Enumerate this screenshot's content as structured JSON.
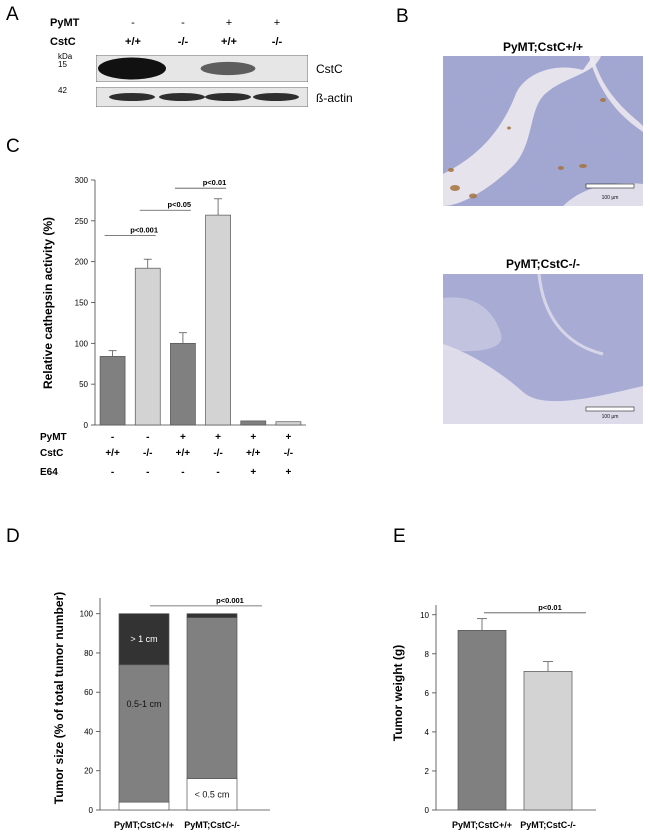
{
  "panels": {
    "a": "A",
    "b": "B",
    "c": "C",
    "d": "D",
    "e": "E"
  },
  "panel_a": {
    "row_labels": [
      "PyMT",
      "CstC"
    ],
    "pymt": [
      "-",
      "-",
      "+",
      "+"
    ],
    "cstc": [
      "+/+",
      "-/-",
      "+/+",
      "-/-"
    ],
    "kda_label": "kDa",
    "markers": [
      "15",
      "42"
    ],
    "band_labels": [
      "CstC",
      "ß-actin"
    ],
    "cstc_band_intensity": [
      1.0,
      0.0,
      0.45,
      0.0
    ],
    "actin_band_intensity": [
      0.9,
      0.9,
      0.9,
      0.9
    ]
  },
  "panel_b": {
    "top_title": "PyMT;CstC+/+",
    "bottom_title": "PyMT;CstC-/-",
    "scale_label": "100 µm",
    "scale_label_2": "100 µm",
    "colors": {
      "tissue": "#9aa0cc",
      "stroma": "#e8e6ee",
      "brown": "#a5733c"
    }
  },
  "chart_data": [
    {
      "type": "bar",
      "panel": "C",
      "ylabel": "Relative cathepsin activity (%)",
      "ylim": [
        0,
        300
      ],
      "yticks": [
        0,
        50,
        100,
        150,
        200,
        250,
        300
      ],
      "values": [
        84,
        192,
        100,
        257,
        5,
        4
      ],
      "errors": [
        7,
        11,
        13,
        20,
        0,
        0
      ],
      "colors": [
        "#808080",
        "#d3d3d3",
        "#808080",
        "#d3d3d3",
        "#808080",
        "#d3d3d3"
      ],
      "condition_labels": [
        "PyMT",
        "CstC",
        "E64"
      ],
      "conditions": {
        "pymt": [
          "-",
          "-",
          "+",
          "+",
          "+",
          "+"
        ],
        "cstc": [
          "+/+",
          "-/-",
          "+/+",
          "-/-",
          "+/+",
          "-/-"
        ],
        "e64": [
          "-",
          "-",
          "-",
          "-",
          "+",
          "+"
        ]
      },
      "significance": [
        {
          "from": 0,
          "to": 1,
          "y": 232,
          "label": "p<0.001"
        },
        {
          "from": 1,
          "to": 2,
          "y": 263,
          "label": "p<0.05"
        },
        {
          "from": 2,
          "to": 3,
          "y": 290,
          "label": "p<0.01"
        }
      ]
    },
    {
      "type": "stacked-bar",
      "panel": "D",
      "ylabel": "Tumor size (% of total tumor number)",
      "ylim": [
        0,
        100
      ],
      "yticks": [
        0,
        20,
        40,
        60,
        80,
        100
      ],
      "categories": [
        "PyMT;CstC+/+",
        "PyMT;CstC-/-"
      ],
      "series": [
        {
          "name": "< 0.5 cm",
          "values": [
            4,
            16
          ],
          "color": "#ffffff"
        },
        {
          "name": "0.5-1 cm",
          "values": [
            70,
            82
          ],
          "color": "#808080"
        },
        {
          "name": "> 1 cm",
          "values": [
            26,
            2
          ],
          "color": "#333333"
        }
      ],
      "segment_labels": [
        {
          "text": "> 1 cm",
          "bar": 0,
          "y": 87
        },
        {
          "text": "0.5-1 cm",
          "bar": 0,
          "y": 54
        },
        {
          "text": "< 0.5 cm",
          "bar": 1,
          "y": 8
        }
      ],
      "significance": {
        "label": "p<0.001",
        "y": 104
      }
    },
    {
      "type": "bar",
      "panel": "E",
      "ylabel": "Tumor weight (g)",
      "ylim": [
        0,
        10.5
      ],
      "yticks": [
        0,
        2,
        4,
        6,
        8,
        10
      ],
      "categories": [
        "PyMT;CstC+/+",
        "PyMT;CstC-/-"
      ],
      "values": [
        9.2,
        7.1
      ],
      "errors": [
        0.6,
        0.5
      ],
      "colors": [
        "#808080",
        "#d3d3d3"
      ],
      "significance": {
        "label": "p<0.01",
        "y": 10.1
      }
    }
  ]
}
